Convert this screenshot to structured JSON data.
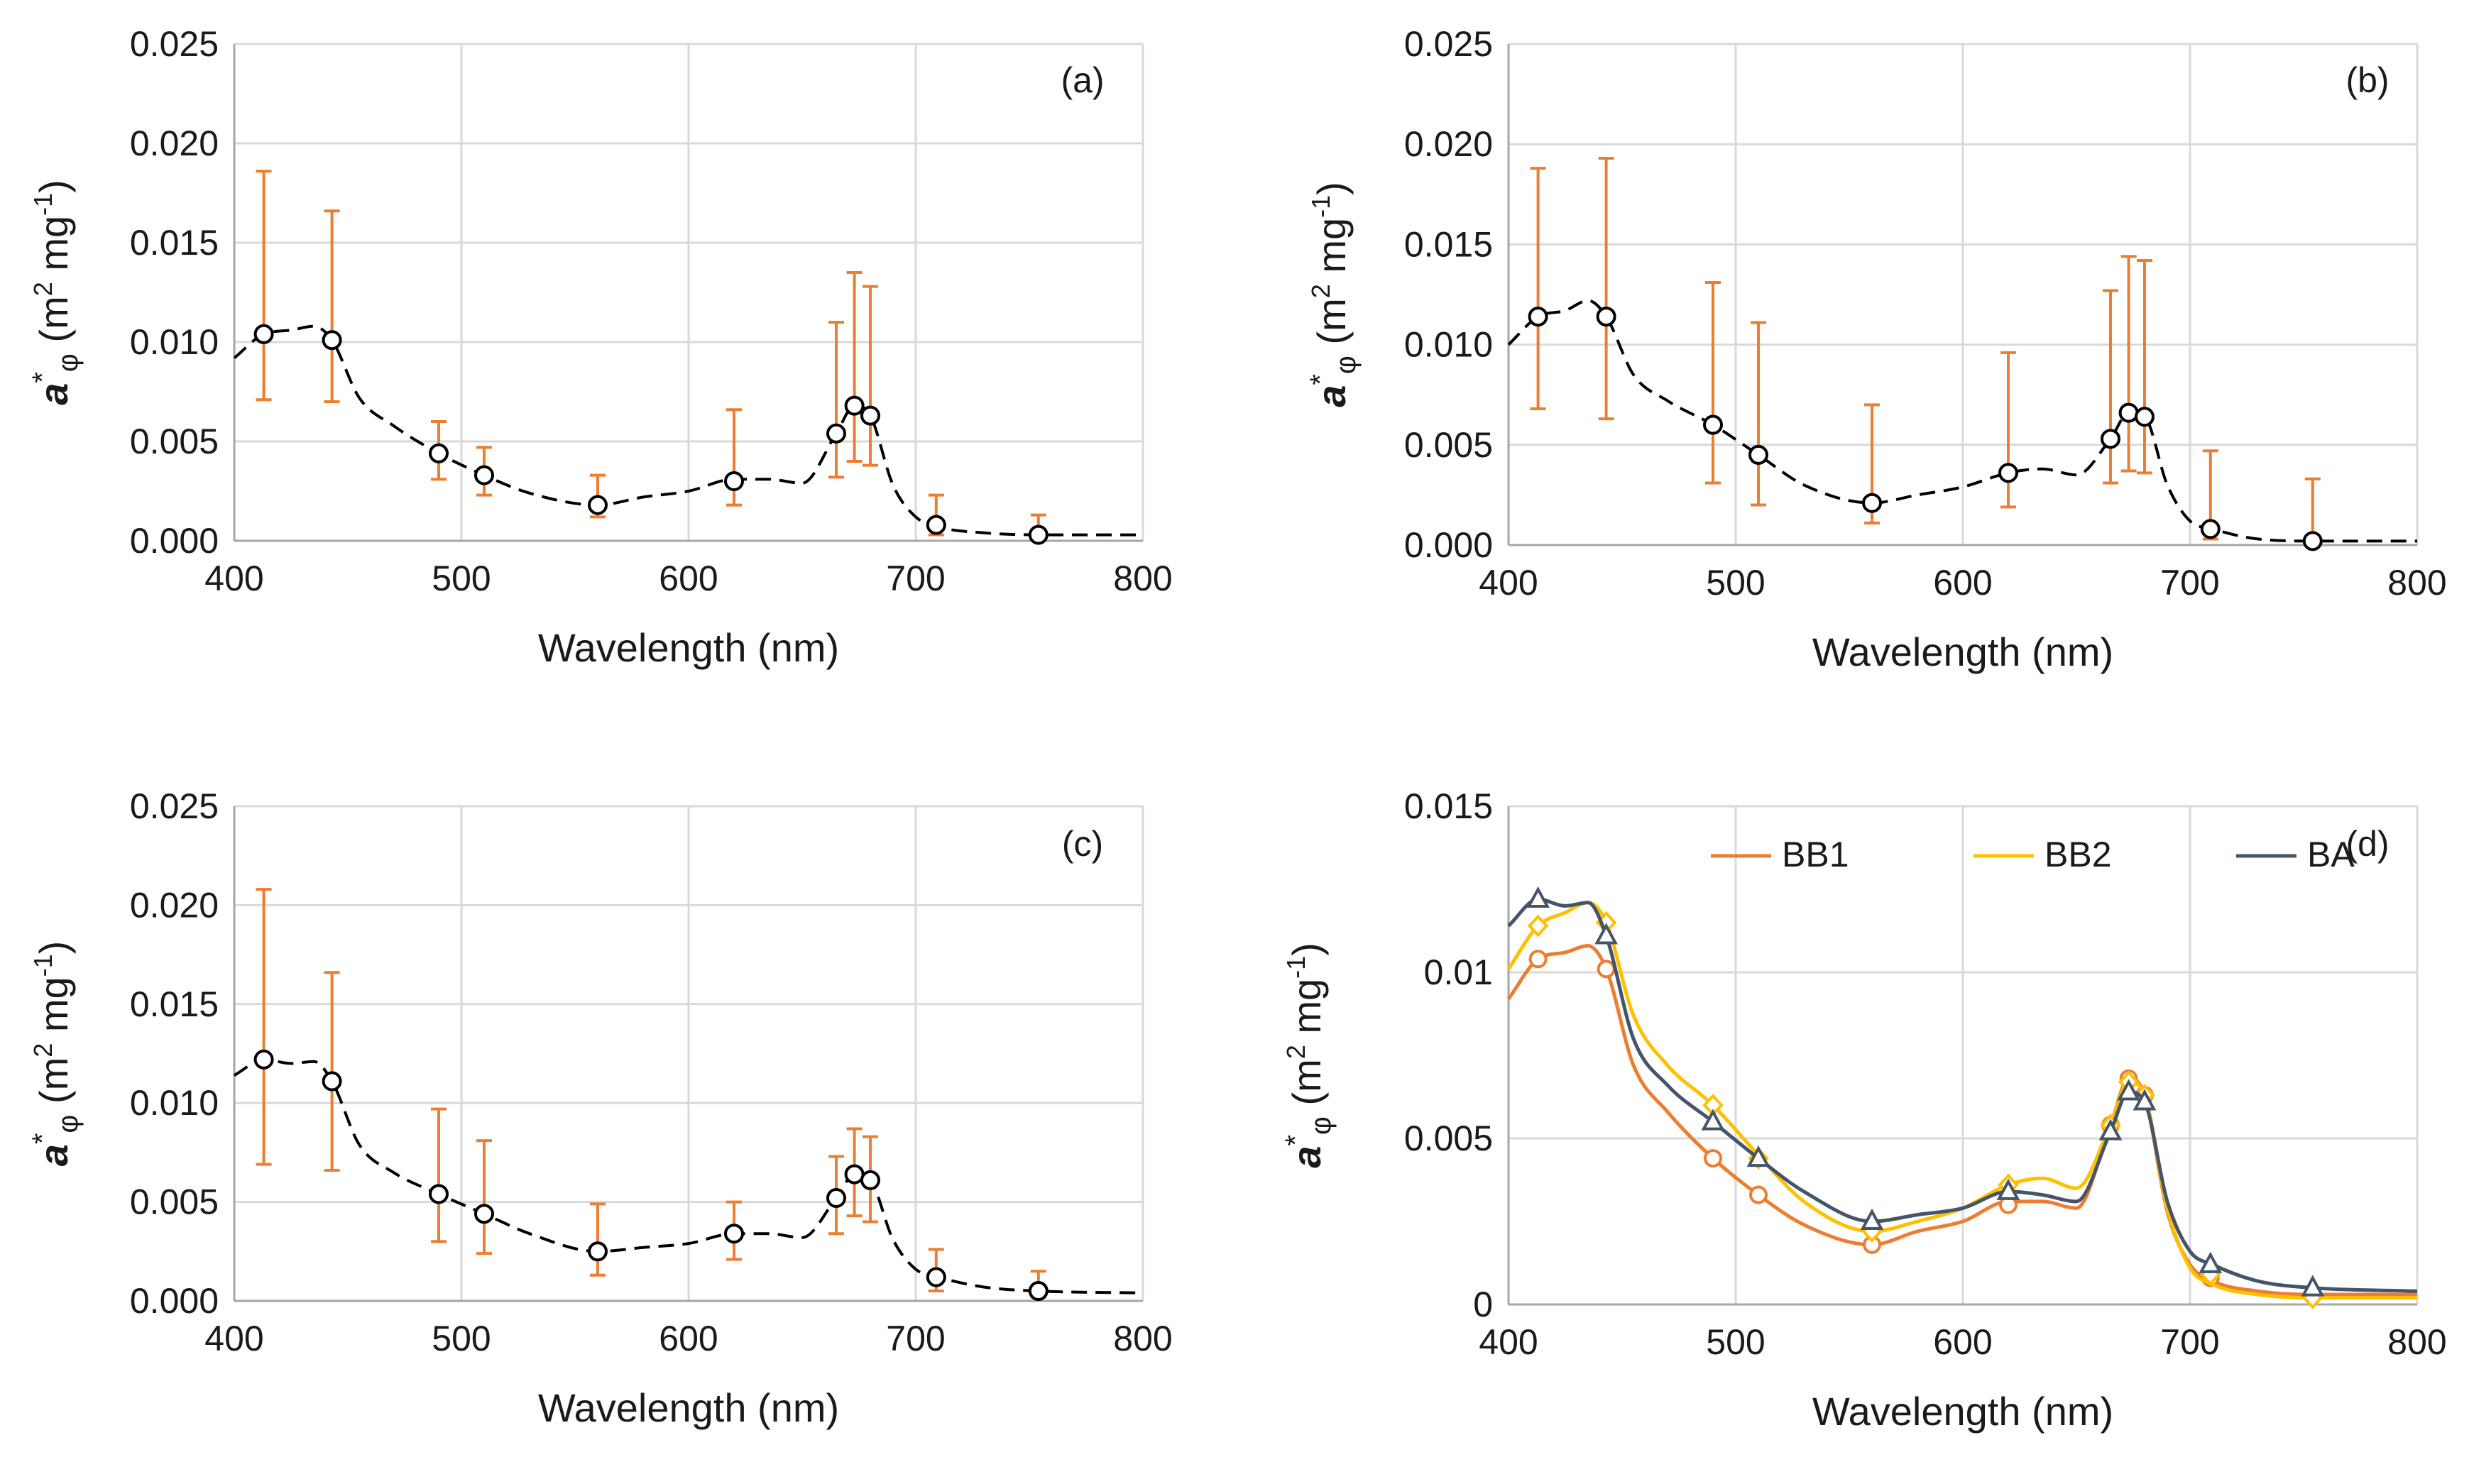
{
  "figure": {
    "background": "#ffffff"
  },
  "colors": {
    "errorbar": "#ED7D31",
    "curve": "#000000",
    "BB1": "#ED7D31",
    "BB2": "#FFC000",
    "BA": "#44546A",
    "grid": "#d9d9d9",
    "axis": "#a6a6a6"
  },
  "chart_data": [
    {
      "panel": "(a)",
      "type": "line",
      "xlabel": "Wavelength (nm)",
      "ylabel": {
        "prefix": "a",
        "sup": "*",
        "sub": "φ",
        "rest": " (m",
        "unit_sup1": "2",
        "mid": " mg",
        "unit_sup2": "-1",
        "close": ")"
      },
      "xlim": [
        400,
        800
      ],
      "ylim": [
        0,
        0.025
      ],
      "xticks": [
        "400",
        "500",
        "600",
        "700",
        "800"
      ],
      "yticks": [
        "0.000",
        "0.005",
        "0.010",
        "0.015",
        "0.020",
        "0.025"
      ],
      "x_tick_values": [
        400,
        500,
        600,
        700,
        800
      ],
      "y_tick_values": [
        0,
        0.005,
        0.01,
        0.015,
        0.02,
        0.025
      ],
      "curve": {
        "style": "dashed",
        "x": [
          400,
          413,
          425,
          435,
          443,
          455,
          470,
          490,
          510,
          530,
          560,
          580,
          600,
          620,
          635,
          650,
          665,
          673,
          680,
          690,
          700,
          710,
          730,
          754,
          800
        ],
        "y": [
          0.0092,
          0.0104,
          0.0106,
          0.0108,
          0.0101,
          0.0072,
          0.0058,
          0.0044,
          0.0033,
          0.0024,
          0.0018,
          0.0022,
          0.0025,
          0.0031,
          0.0031,
          0.0029,
          0.0054,
          0.0068,
          0.0063,
          0.0028,
          0.0012,
          0.0007,
          0.0004,
          0.0003,
          0.0003
        ]
      },
      "points": [
        {
          "x": 413,
          "y": 0.0104,
          "lo": 0.0071,
          "hi": 0.0186
        },
        {
          "x": 443,
          "y": 0.0101,
          "lo": 0.007,
          "hi": 0.0166
        },
        {
          "x": 490,
          "y": 0.0044,
          "lo": 0.0031,
          "hi": 0.006
        },
        {
          "x": 510,
          "y": 0.0033,
          "lo": 0.0023,
          "hi": 0.0047
        },
        {
          "x": 560,
          "y": 0.0018,
          "lo": 0.0012,
          "hi": 0.0033
        },
        {
          "x": 620,
          "y": 0.003,
          "lo": 0.0018,
          "hi": 0.0066
        },
        {
          "x": 665,
          "y": 0.0054,
          "lo": 0.0032,
          "hi": 0.011
        },
        {
          "x": 673,
          "y": 0.0068,
          "lo": 0.004,
          "hi": 0.0135
        },
        {
          "x": 680,
          "y": 0.0063,
          "lo": 0.0038,
          "hi": 0.0128
        },
        {
          "x": 709,
          "y": 0.0008,
          "lo": 0.0003,
          "hi": 0.0023
        },
        {
          "x": 754,
          "y": 0.0003,
          "lo": 0.0002,
          "hi": 0.0013
        }
      ]
    },
    {
      "panel": "(b)",
      "type": "line",
      "xlabel": "Wavelength (nm)",
      "ylabel": {
        "prefix": "a",
        "sup": "*",
        "sub": "φ",
        "rest": " (m",
        "unit_sup1": "2",
        "mid": " mg",
        "unit_sup2": "-1",
        "close": ")"
      },
      "xlim": [
        400,
        800
      ],
      "ylim": [
        0,
        0.025
      ],
      "xticks": [
        "400",
        "500",
        "600",
        "700",
        "800"
      ],
      "yticks": [
        "0.000",
        "0.005",
        "0.010",
        "0.015",
        "0.020",
        "0.025"
      ],
      "x_tick_values": [
        400,
        500,
        600,
        700,
        800
      ],
      "y_tick_values": [
        0,
        0.005,
        0.01,
        0.015,
        0.02,
        0.025
      ],
      "curve": {
        "style": "dashed",
        "x": [
          400,
          413,
          425,
          435,
          443,
          455,
          470,
          490,
          510,
          530,
          560,
          580,
          600,
          620,
          635,
          650,
          665,
          673,
          680,
          690,
          700,
          710,
          730,
          754,
          800
        ],
        "y": [
          0.01,
          0.0114,
          0.0117,
          0.0122,
          0.0114,
          0.0085,
          0.0072,
          0.006,
          0.0045,
          0.003,
          0.0021,
          0.0025,
          0.0029,
          0.0036,
          0.0038,
          0.0035,
          0.0053,
          0.0066,
          0.0064,
          0.003,
          0.0012,
          0.0008,
          0.0003,
          0.0002,
          0.0002
        ]
      },
      "points": [
        {
          "x": 413,
          "y": 0.0114,
          "lo": 0.0068,
          "hi": 0.0188
        },
        {
          "x": 443,
          "y": 0.0114,
          "lo": 0.0063,
          "hi": 0.0193
        },
        {
          "x": 490,
          "y": 0.006,
          "lo": 0.0031,
          "hi": 0.0131
        },
        {
          "x": 510,
          "y": 0.0045,
          "lo": 0.002,
          "hi": 0.0111
        },
        {
          "x": 560,
          "y": 0.0021,
          "lo": 0.0011,
          "hi": 0.007
        },
        {
          "x": 620,
          "y": 0.0036,
          "lo": 0.0019,
          "hi": 0.0096
        },
        {
          "x": 665,
          "y": 0.0053,
          "lo": 0.0031,
          "hi": 0.0127
        },
        {
          "x": 673,
          "y": 0.0066,
          "lo": 0.0037,
          "hi": 0.0144
        },
        {
          "x": 680,
          "y": 0.0064,
          "lo": 0.0036,
          "hi": 0.0142
        },
        {
          "x": 709,
          "y": 0.0008,
          "lo": 0.0003,
          "hi": 0.0047
        },
        {
          "x": 754,
          "y": 0.0002,
          "lo": 0.0001,
          "hi": 0.0033
        }
      ]
    },
    {
      "panel": "(c)",
      "type": "line",
      "xlabel": "Wavelength (nm)",
      "ylabel": {
        "prefix": "a",
        "sup": "*",
        "sub": "φ",
        "rest": " (m",
        "unit_sup1": "2",
        "mid": " mg",
        "unit_sup2": "-1",
        "close": ")"
      },
      "xlim": [
        400,
        800
      ],
      "ylim": [
        0,
        0.025
      ],
      "xticks": [
        "400",
        "500",
        "600",
        "700",
        "800"
      ],
      "yticks": [
        "0.000",
        "0.005",
        "0.010",
        "0.015",
        "0.020",
        "0.025"
      ],
      "x_tick_values": [
        400,
        500,
        600,
        700,
        800
      ],
      "y_tick_values": [
        0,
        0.005,
        0.01,
        0.015,
        0.02,
        0.025
      ],
      "curve": {
        "style": "dashed",
        "x": [
          400,
          413,
          425,
          435,
          443,
          455,
          470,
          490,
          510,
          530,
          560,
          580,
          600,
          620,
          635,
          650,
          665,
          673,
          680,
          690,
          700,
          710,
          730,
          754,
          800
        ],
        "y": [
          0.0114,
          0.0122,
          0.012,
          0.0121,
          0.0111,
          0.0079,
          0.0065,
          0.0054,
          0.0044,
          0.0034,
          0.0025,
          0.0027,
          0.0029,
          0.0034,
          0.0034,
          0.0032,
          0.0052,
          0.0064,
          0.0061,
          0.0031,
          0.0016,
          0.0012,
          0.0007,
          0.0005,
          0.0004
        ]
      },
      "points": [
        {
          "x": 413,
          "y": 0.0122,
          "lo": 0.0069,
          "hi": 0.0208
        },
        {
          "x": 443,
          "y": 0.0111,
          "lo": 0.0066,
          "hi": 0.0166
        },
        {
          "x": 490,
          "y": 0.0054,
          "lo": 0.003,
          "hi": 0.0097
        },
        {
          "x": 510,
          "y": 0.0044,
          "lo": 0.0024,
          "hi": 0.0081
        },
        {
          "x": 560,
          "y": 0.0025,
          "lo": 0.0013,
          "hi": 0.0049
        },
        {
          "x": 620,
          "y": 0.0034,
          "lo": 0.0021,
          "hi": 0.005
        },
        {
          "x": 665,
          "y": 0.0052,
          "lo": 0.0034,
          "hi": 0.0073
        },
        {
          "x": 673,
          "y": 0.0064,
          "lo": 0.0043,
          "hi": 0.0087
        },
        {
          "x": 680,
          "y": 0.0061,
          "lo": 0.004,
          "hi": 0.0083
        },
        {
          "x": 709,
          "y": 0.0012,
          "lo": 0.0005,
          "hi": 0.0026
        },
        {
          "x": 754,
          "y": 0.0005,
          "lo": 0.0002,
          "hi": 0.0015
        }
      ]
    },
    {
      "panel": "(d)",
      "type": "line",
      "xlabel": "Wavelength (nm)",
      "ylabel": {
        "prefix": "a",
        "sup": "*",
        "sub": "φ",
        "rest": " (m",
        "unit_sup1": "2",
        "mid": " mg",
        "unit_sup2": "-1",
        "close": ")"
      },
      "xlim": [
        400,
        800
      ],
      "ylim": [
        0,
        0.015
      ],
      "xticks": [
        "400",
        "500",
        "600",
        "700",
        "800"
      ],
      "yticks": [
        "0",
        "0.005",
        "0.01",
        "0.015"
      ],
      "x_tick_values": [
        400,
        500,
        600,
        700,
        800
      ],
      "y_tick_values": [
        0,
        0.005,
        0.01,
        0.015
      ],
      "legend": {
        "placement": "top-center",
        "entries": [
          "BB1",
          "BB2",
          "BA"
        ]
      },
      "series": [
        {
          "name": "BB1",
          "marker": "circle",
          "x": [
            400,
            413,
            425,
            435,
            443,
            455,
            470,
            490,
            510,
            530,
            560,
            580,
            600,
            620,
            635,
            650,
            665,
            673,
            680,
            690,
            700,
            710,
            730,
            754,
            800
          ],
          "y": [
            0.0092,
            0.0104,
            0.0106,
            0.0108,
            0.0101,
            0.0072,
            0.0058,
            0.0044,
            0.0033,
            0.0024,
            0.0018,
            0.0022,
            0.0025,
            0.0031,
            0.0031,
            0.0029,
            0.0054,
            0.0068,
            0.0063,
            0.0028,
            0.0012,
            0.0007,
            0.0004,
            0.0003,
            0.0003
          ],
          "marker_x": [
            413,
            443,
            490,
            510,
            560,
            620,
            665,
            673,
            680,
            709,
            754
          ],
          "marker_y": [
            0.0104,
            0.0101,
            0.0044,
            0.0033,
            0.0018,
            0.003,
            0.0054,
            0.0068,
            0.0063,
            0.0008,
            0.0003
          ]
        },
        {
          "name": "BB2",
          "marker": "diamond",
          "x": [
            400,
            413,
            425,
            435,
            443,
            455,
            470,
            490,
            510,
            530,
            560,
            580,
            600,
            620,
            635,
            650,
            665,
            673,
            680,
            690,
            700,
            710,
            730,
            754,
            800
          ],
          "y": [
            0.0101,
            0.0114,
            0.0118,
            0.0121,
            0.0115,
            0.0087,
            0.0072,
            0.006,
            0.0045,
            0.0031,
            0.0022,
            0.0025,
            0.0029,
            0.0036,
            0.0038,
            0.0035,
            0.0054,
            0.0067,
            0.0063,
            0.0029,
            0.0011,
            0.0006,
            0.0003,
            0.0002,
            0.0002
          ],
          "marker_x": [
            413,
            443,
            490,
            510,
            560,
            620,
            665,
            673,
            680,
            709,
            754
          ],
          "marker_y": [
            0.0114,
            0.0115,
            0.006,
            0.0044,
            0.0022,
            0.0036,
            0.0054,
            0.0067,
            0.0063,
            0.0009,
            0.0002
          ]
        },
        {
          "name": "BA",
          "marker": "triangle",
          "x": [
            400,
            413,
            425,
            435,
            443,
            455,
            470,
            490,
            510,
            530,
            560,
            580,
            600,
            620,
            635,
            650,
            665,
            673,
            680,
            690,
            700,
            710,
            730,
            754,
            800
          ],
          "y": [
            0.0114,
            0.0122,
            0.012,
            0.0121,
            0.0111,
            0.008,
            0.0066,
            0.0055,
            0.0044,
            0.0034,
            0.0025,
            0.0027,
            0.0029,
            0.0034,
            0.0033,
            0.0031,
            0.0052,
            0.0064,
            0.0061,
            0.0031,
            0.0016,
            0.0012,
            0.0007,
            0.0005,
            0.0004
          ],
          "marker_x": [
            413,
            443,
            490,
            510,
            560,
            620,
            665,
            673,
            680,
            709,
            754
          ],
          "marker_y": [
            0.0122,
            0.0111,
            0.0055,
            0.0044,
            0.0025,
            0.0034,
            0.0052,
            0.0064,
            0.0061,
            0.0012,
            0.0005
          ]
        }
      ]
    }
  ]
}
